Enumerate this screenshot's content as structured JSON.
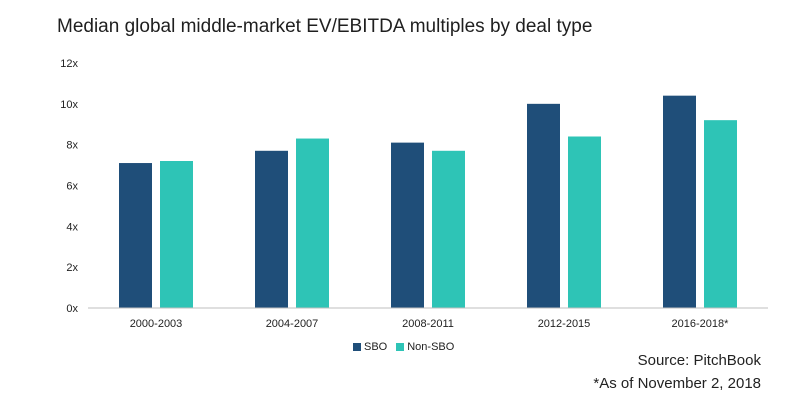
{
  "colors": {
    "sbo": "#1f4e79",
    "non_sbo": "#2ec4b6",
    "axis": "#bfbfbf"
  },
  "chart_data": {
    "type": "bar",
    "title": "Median global middle-market EV/EBITDA multiples by deal type",
    "categories": [
      "2000-2003",
      "2004-2007",
      "2008-2011",
      "2012-2015",
      "2016-2018*"
    ],
    "series": [
      {
        "name": "SBO",
        "values": [
          7.1,
          7.7,
          8.1,
          10.0,
          10.4
        ]
      },
      {
        "name": "Non-SBO",
        "values": [
          7.2,
          8.3,
          7.7,
          8.4,
          9.2
        ]
      }
    ],
    "yticks": [
      "0x",
      "2x",
      "4x",
      "6x",
      "8x",
      "10x",
      "12x"
    ],
    "ylim": [
      0,
      12
    ],
    "xlabel": "",
    "ylabel": "",
    "legend_position": "bottom"
  },
  "source": "Source: PitchBook",
  "footnote": "*As of November 2, 2018"
}
